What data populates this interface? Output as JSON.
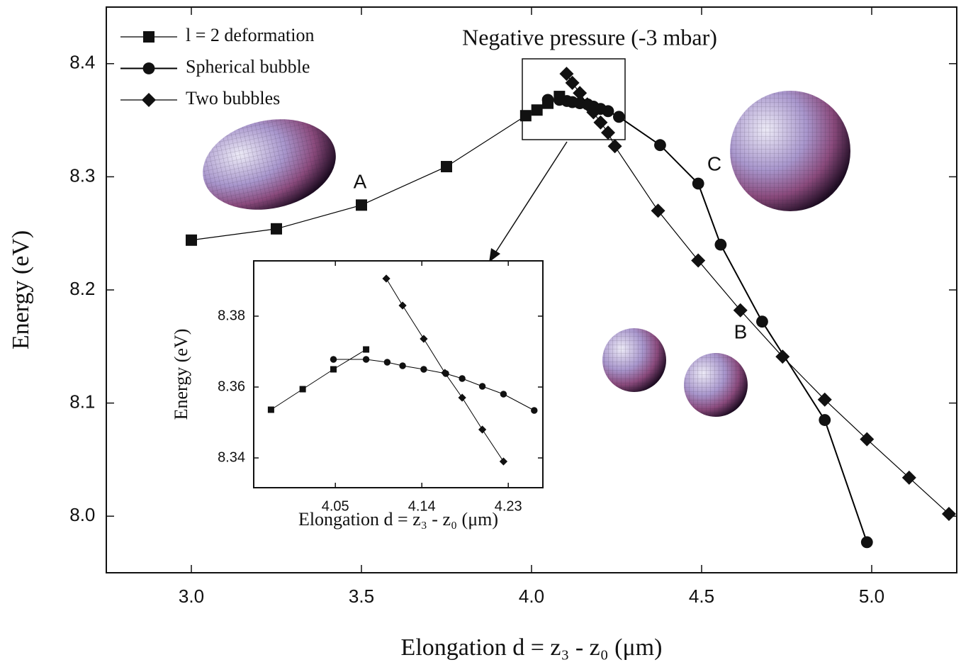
{
  "chart_data": [
    {
      "type": "line",
      "title": "Negative pressure (-3 mbar)",
      "xlabel": "Elongation d = z₃ - z₀  (μm)",
      "ylabel": "Energy (eV)",
      "annotations": [
        "A",
        "B",
        "C"
      ],
      "xlim": [
        2.75,
        5.25
      ],
      "ylim": [
        7.95,
        8.45
      ],
      "xticks": [
        {
          "value": 3,
          "label": "3.0"
        },
        3.5,
        {
          "value": 4,
          "label": "4.0"
        },
        4.5,
        {
          "value": 5,
          "label": "5.0"
        }
      ],
      "yticks": [
        {
          "value": 8,
          "label": "8.0"
        },
        8.1,
        8.2,
        8.3,
        8.4
      ],
      "legend": "upper left",
      "series": [
        {
          "name": "l = 2 deformation",
          "marker": "square",
          "color": "#000000",
          "x": [
            3.0,
            3.25,
            3.5,
            3.75,
            3.983,
            4.016,
            4.048,
            4.082
          ],
          "values": [
            8.244,
            8.254,
            8.275,
            8.309,
            8.354,
            8.359,
            8.365,
            8.371
          ]
        },
        {
          "name": "Spherical bubble",
          "marker": "circle",
          "color": "#000000",
          "x": [
            4.048,
            4.082,
            4.104,
            4.12,
            4.142,
            4.165,
            4.182,
            4.203,
            4.225,
            4.257,
            4.378,
            4.49,
            4.556,
            4.678,
            4.862,
            4.986
          ],
          "values": [
            8.368,
            8.368,
            8.367,
            8.366,
            8.365,
            8.364,
            8.362,
            8.36,
            8.358,
            8.353,
            8.328,
            8.294,
            8.24,
            8.172,
            8.085,
            7.977
          ]
        },
        {
          "name": "Two bubbles",
          "marker": "diamond",
          "color": "#000000",
          "x": [
            4.103,
            4.12,
            4.142,
            4.164,
            4.182,
            4.203,
            4.225,
            4.245,
            4.372,
            4.49,
            4.614,
            4.738,
            4.862,
            4.986,
            5.11,
            5.227
          ],
          "values": [
            8.391,
            8.383,
            8.374,
            8.364,
            8.357,
            8.348,
            8.339,
            8.327,
            8.27,
            8.226,
            8.182,
            8.141,
            8.103,
            8.068,
            8.034,
            8.002
          ]
        }
      ]
    },
    {
      "type": "line",
      "xlabel": "Elongation d = z₃ - z₀ (μm)",
      "ylabel": "Energy (eV)",
      "xlim": [
        3.965,
        4.266
      ],
      "ylim": [
        8.3316,
        8.3956
      ],
      "xticks": [
        4.05,
        4.14,
        4.23
      ],
      "yticks": [
        8.34,
        8.36,
        8.38
      ],
      "series": [
        {
          "marker": "square",
          "color": "#000000",
          "x": [
            3.983,
            4.016,
            4.048,
            4.082
          ],
          "values": [
            8.3536,
            8.3594,
            8.365,
            8.3706
          ]
        },
        {
          "marker": "circle",
          "color": "#000000",
          "x": [
            4.048,
            4.082,
            4.104,
            4.12,
            4.142,
            4.165,
            4.182,
            4.203,
            4.225,
            4.257
          ],
          "values": [
            8.3678,
            8.3678,
            8.367,
            8.366,
            8.365,
            8.3638,
            8.3624,
            8.3602,
            8.358,
            8.3534
          ]
        },
        {
          "marker": "diamond",
          "color": "#000000",
          "x": [
            4.103,
            4.12,
            4.142,
            4.164,
            4.182,
            4.203,
            4.225
          ],
          "values": [
            8.3906,
            8.383,
            8.3736,
            8.364,
            8.357,
            8.348,
            8.339
          ]
        }
      ]
    }
  ]
}
